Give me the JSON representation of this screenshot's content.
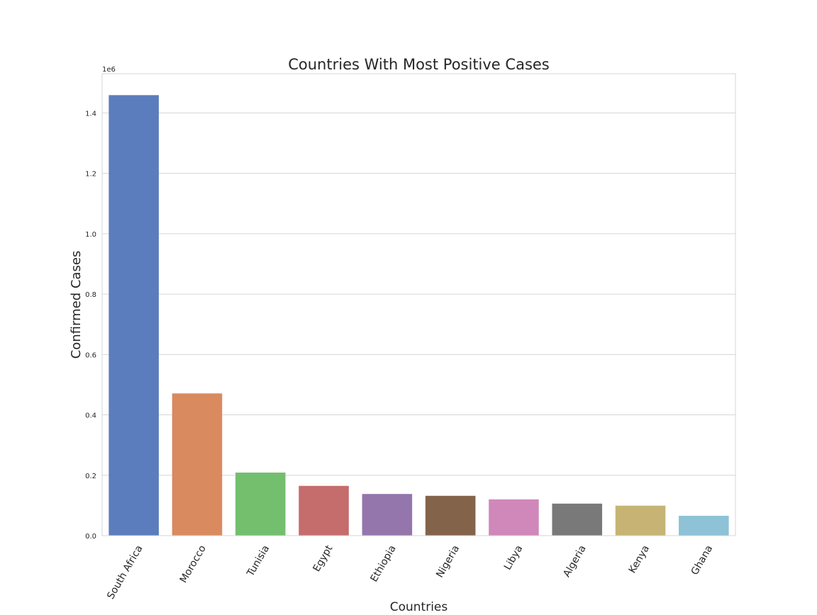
{
  "chart_data": {
    "type": "bar",
    "title": "Countries With Most Positive Cases",
    "xlabel": "Countries",
    "ylabel": "Confirmed Cases",
    "y_scale_label": "1e6",
    "categories": [
      "South Africa",
      "Morocco",
      "Tunisia",
      "Egypt",
      "Ethiopia",
      "Nigeria",
      "Libya",
      "Algeria",
      "Kenya",
      "Ghana"
    ],
    "values": [
      1458958,
      471010,
      208940,
      164852,
      138032,
      131918,
      120108,
      106069,
      99308,
      65738
    ],
    "colors": [
      "#5b7dbd",
      "#d98a5f",
      "#74bf6e",
      "#c56c6c",
      "#9476ad",
      "#83644a",
      "#d088ba",
      "#797979",
      "#c7b474",
      "#8ec2d6"
    ],
    "ylim": [
      0,
      1530000
    ],
    "yticks": [
      "0.0",
      "0.2",
      "0.4",
      "0.6",
      "0.8",
      "1.0",
      "1.2",
      "1.4"
    ],
    "grid": true,
    "grid_axis": "y"
  }
}
